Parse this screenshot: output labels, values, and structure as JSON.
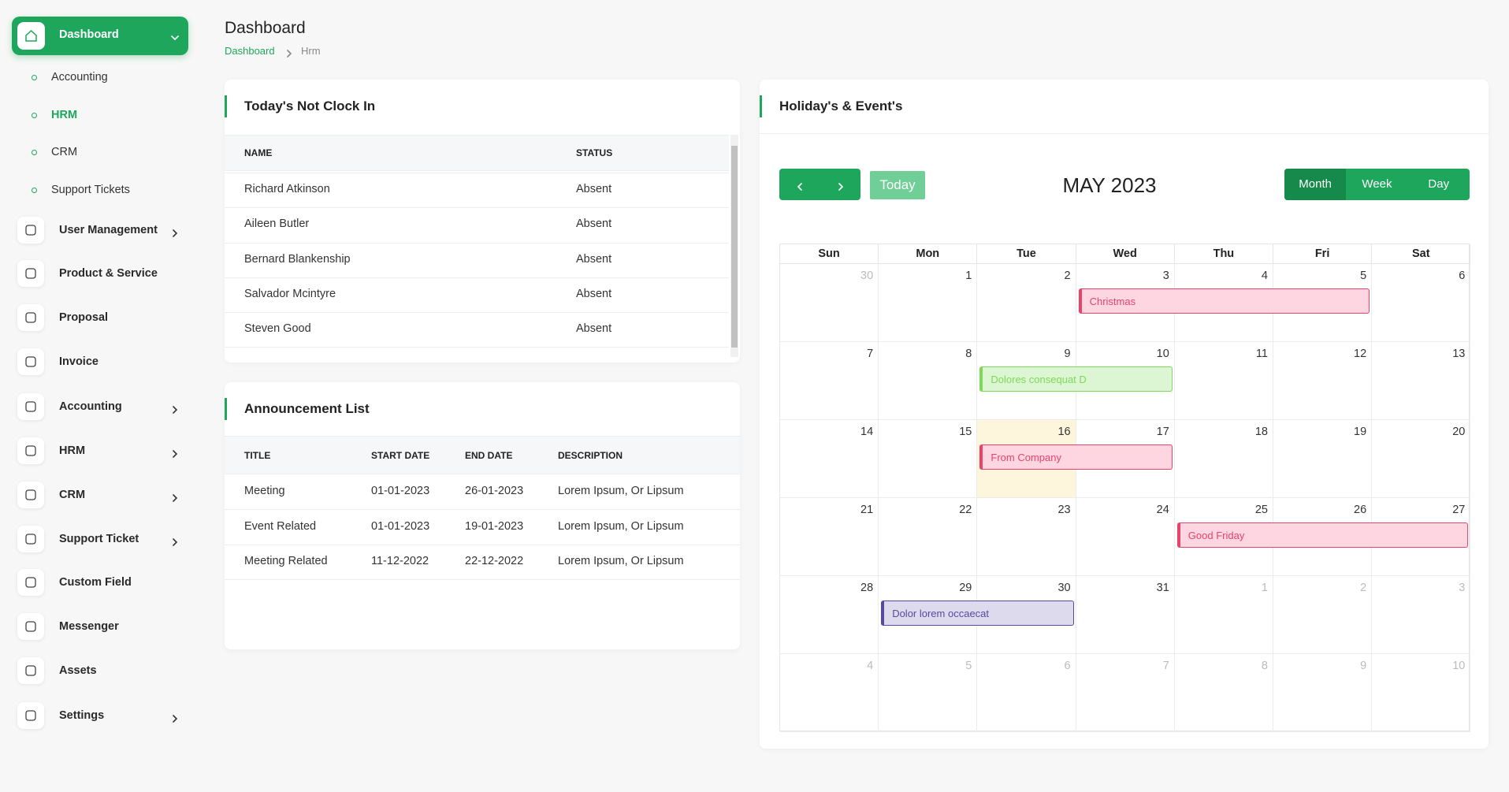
{
  "sidebar": {
    "active": "Dashboard",
    "submenu": [
      "Accounting",
      "HRM",
      "CRM",
      "Support Tickets"
    ],
    "active_submenu": 1,
    "items": [
      {
        "label": "User Management",
        "has_children": true
      },
      {
        "label": "Product & Service",
        "has_children": false
      },
      {
        "label": "Proposal",
        "has_children": false
      },
      {
        "label": "Invoice",
        "has_children": false
      },
      {
        "label": "Accounting",
        "has_children": true
      },
      {
        "label": "HRM",
        "has_children": true
      },
      {
        "label": "CRM",
        "has_children": true
      },
      {
        "label": "Support Ticket",
        "has_children": true
      },
      {
        "label": "Custom Field",
        "has_children": false
      },
      {
        "label": "Messenger",
        "has_children": false
      },
      {
        "label": "Assets",
        "has_children": false
      },
      {
        "label": "Settings",
        "has_children": true
      }
    ]
  },
  "header": {
    "title": "Dashboard",
    "breadcrumb": [
      "Dashboard",
      "Hrm"
    ]
  },
  "not_clock_in": {
    "title": "Today's Not Clock In",
    "columns": [
      "NAME",
      "STATUS"
    ],
    "rows": [
      [
        "Richard Atkinson",
        "Absent"
      ],
      [
        "Aileen Butler",
        "Absent"
      ],
      [
        "Bernard Blankenship",
        "Absent"
      ],
      [
        "Salvador Mcintyre",
        "Absent"
      ],
      [
        "Steven Good",
        "Absent"
      ]
    ]
  },
  "announcements": {
    "title": "Announcement List",
    "columns": [
      "TITLE",
      "START DATE",
      "END DATE",
      "DESCRIPTION"
    ],
    "rows": [
      [
        "Meeting",
        "01-01-2023",
        "26-01-2023",
        "Lorem Ipsum, Or Lipsum"
      ],
      [
        "Event Related",
        "01-01-2023",
        "19-01-2023",
        "Lorem Ipsum, Or Lipsum"
      ],
      [
        "Meeting Related",
        "11-12-2022",
        "22-12-2022",
        "Lorem Ipsum, Or Lipsum"
      ]
    ]
  },
  "calendar": {
    "title": "Holiday's & Event's",
    "month": "MAY 2023",
    "today_button": "Today",
    "views": [
      "Month",
      "Week",
      "Day"
    ],
    "active_view": 0,
    "weekdays": [
      "Sun",
      "Mon",
      "Tue",
      "Wed",
      "Thu",
      "Fri",
      "Sat"
    ],
    "weeks": [
      [
        30,
        1,
        2,
        3,
        4,
        5,
        6
      ],
      [
        7,
        8,
        9,
        10,
        11,
        12,
        13
      ],
      [
        14,
        15,
        16,
        17,
        18,
        19,
        20
      ],
      [
        21,
        22,
        23,
        24,
        25,
        26,
        27
      ],
      [
        28,
        29,
        30,
        31,
        1,
        2,
        3
      ],
      [
        4,
        5,
        6,
        7,
        8,
        9,
        10
      ]
    ],
    "today": 16,
    "events": [
      {
        "title": "Christmas",
        "start": 3,
        "end": 5,
        "color": "#e8436b",
        "fill": "#fdd6e1"
      },
      {
        "title": "Dolores consequat D",
        "start": 9,
        "end": 10,
        "color": "#7ed957",
        "fill": "#dcf5d3"
      },
      {
        "title": "From Company",
        "start": 16,
        "end": 17,
        "color": "#e8436b",
        "fill": "#fdd6e1"
      },
      {
        "title": "Good Friday",
        "start": 25,
        "end": 27,
        "color": "#e8436b",
        "fill": "#fdd6e1"
      },
      {
        "title": "Dolor lorem occaecat",
        "start": 29,
        "end": 30,
        "color": "#574a9e",
        "fill": "#dddaee"
      }
    ]
  }
}
